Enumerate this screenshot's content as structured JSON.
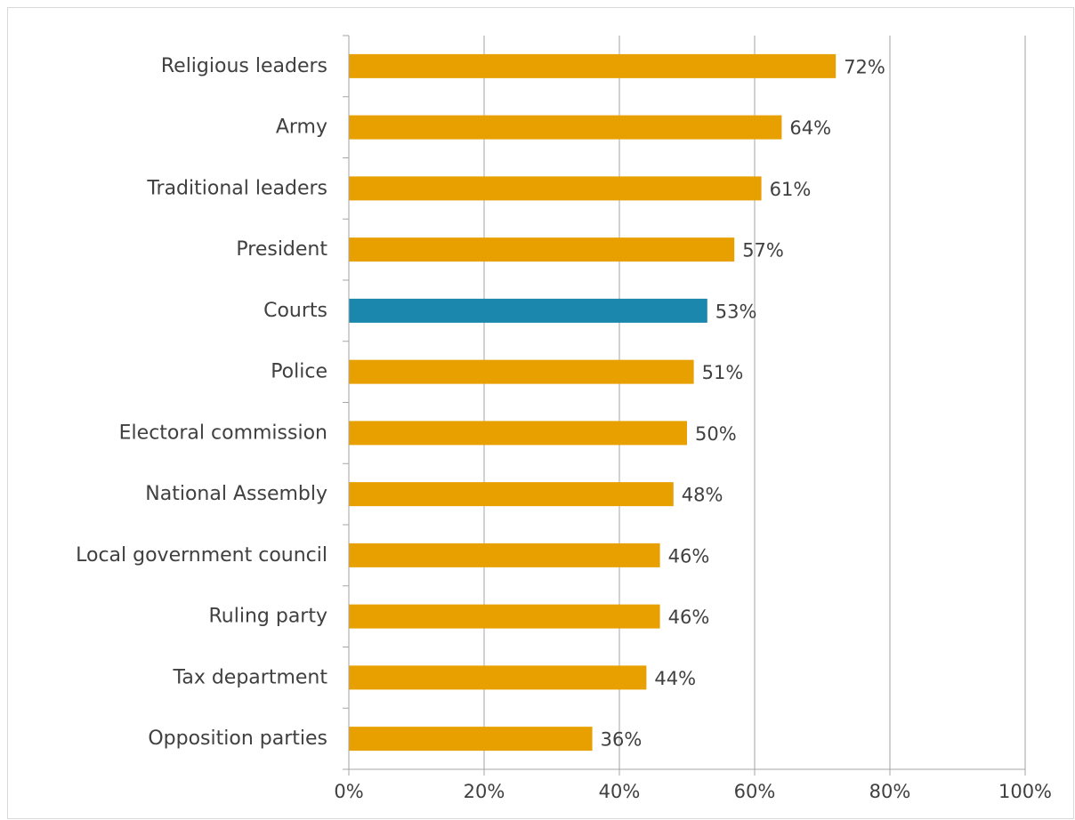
{
  "chart_data": {
    "type": "bar",
    "orientation": "horizontal",
    "categories": [
      "Religious leaders",
      "Army",
      "Traditional leaders",
      "President",
      "Courts",
      "Police",
      "Electoral commission",
      "National Assembly",
      "Local government council",
      "Ruling party",
      "Tax department",
      "Opposition parties"
    ],
    "values": [
      72,
      64,
      61,
      57,
      53,
      51,
      50,
      48,
      46,
      46,
      44,
      36
    ],
    "value_labels": [
      "72%",
      "64%",
      "61%",
      "57%",
      "53%",
      "51%",
      "50%",
      "48%",
      "46%",
      "46%",
      "44%",
      "36%"
    ],
    "highlight_index": 4,
    "xlim": [
      0,
      100
    ],
    "x_ticks": [
      0,
      20,
      40,
      60,
      80,
      100
    ],
    "x_tick_labels": [
      "0%",
      "20%",
      "40%",
      "60%",
      "80%",
      "100%"
    ],
    "grid": "vertical",
    "legend": "none",
    "colors": {
      "bar": "#e8a000",
      "highlight": "#1b87ad",
      "grid": "#a6a6a6",
      "text": "#404040",
      "frame": "#d9d9d9"
    }
  }
}
